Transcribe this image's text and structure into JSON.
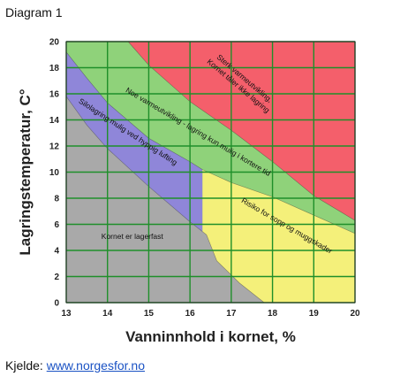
{
  "diagram_label": "Diagram 1",
  "source": {
    "prefix": "Kjelde: ",
    "link_text": "www.norgesfor.no"
  },
  "chart_data": {
    "type": "area",
    "xlabel": "Vanninnhold i kornet, %",
    "ylabel": "Lagringstemperatur, C°",
    "xlim": [
      13,
      20
    ],
    "ylim": [
      0,
      20
    ],
    "x_ticks": [
      13,
      14,
      15,
      16,
      17,
      18,
      19,
      20
    ],
    "y_ticks": [
      0,
      2,
      4,
      6,
      8,
      10,
      12,
      14,
      16,
      18,
      20
    ],
    "grid": true,
    "colors": {
      "storable": "#a9a9a9",
      "frequent_ventilation": "#8f86d9",
      "some_heating": "#8fd27a",
      "strong_heating": "#f45f6b",
      "mould_risk": "#f4f07a",
      "gridline": "#1f8f2a"
    },
    "boundaries": [
      {
        "key": "storable",
        "points": [
          [
            13,
            15.8
          ],
          [
            13.5,
            13.6
          ],
          [
            14,
            11.8
          ],
          [
            15,
            8.9
          ],
          [
            16,
            6.2
          ],
          [
            16.4,
            5.2
          ],
          [
            16.65,
            3.2
          ],
          [
            17.2,
            1.5
          ],
          [
            17.8,
            0
          ]
        ]
      },
      {
        "key": "frequent_ventilation",
        "points": [
          [
            13,
            19.2
          ],
          [
            13.5,
            17.2
          ],
          [
            14,
            15.3
          ],
          [
            15,
            12.6
          ],
          [
            16,
            10.8
          ],
          [
            16.3,
            10.2
          ]
        ]
      },
      {
        "key": "some_heating",
        "points": [
          [
            14.5,
            20
          ],
          [
            15,
            18.2
          ],
          [
            16,
            15.4
          ],
          [
            17,
            13.2
          ],
          [
            18,
            10.8
          ],
          [
            19,
            8.2
          ],
          [
            20,
            6.3
          ]
        ]
      },
      {
        "key": "mould_risk",
        "points": [
          [
            16.3,
            10.2
          ],
          [
            17,
            9.2
          ],
          [
            18,
            8.1
          ],
          [
            19,
            6.7
          ],
          [
            20,
            5.3
          ]
        ]
      }
    ],
    "annotations": [
      {
        "key": "strong_heating",
        "text": [
          "Sterk varmeutvikling,",
          "Kornet tåler ikke lagring"
        ]
      },
      {
        "key": "some_heating",
        "text": [
          "Noe varmeutvikling - lagring kun mulig i kortere tid"
        ]
      },
      {
        "key": "frequent_ventilation",
        "text": [
          "Silolagring mulig ved hyppig lufting"
        ]
      },
      {
        "key": "mould_risk",
        "text": [
          "Risiko for sopp og muggskader"
        ]
      },
      {
        "key": "storable",
        "text": [
          "Kornet er lagerfast"
        ]
      }
    ]
  }
}
